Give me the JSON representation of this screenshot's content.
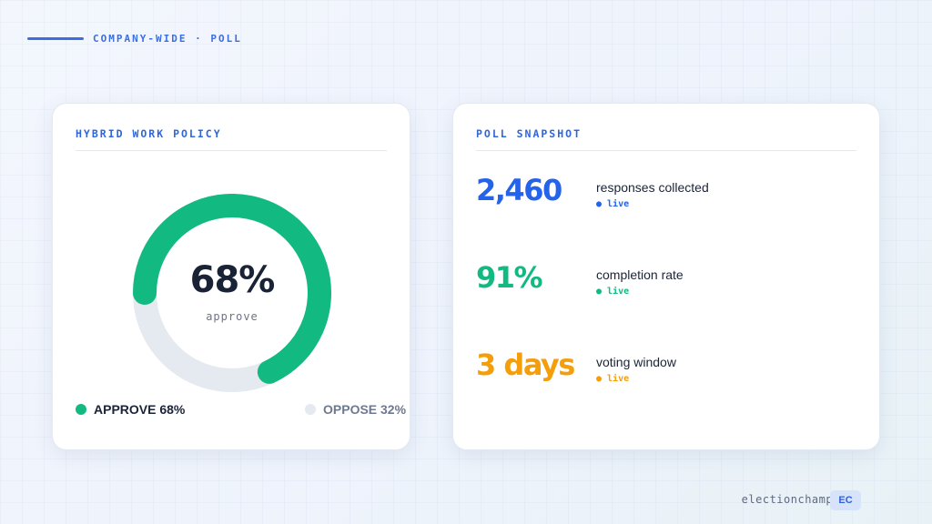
{
  "header": {
    "label": "COMPANY-WIDE · POLL"
  },
  "left_card": {
    "title": "HYBRID WORK POLICY",
    "donut": {
      "value_text": "68%",
      "caption": "approve",
      "approve_fraction": 0.68
    },
    "legend": [
      {
        "label": "APPROVE 68%",
        "color": "#12b981"
      },
      {
        "label": "OPPOSE 32%",
        "color": "#e5e9f0"
      }
    ]
  },
  "right_card": {
    "title": "POLL SNAPSHOT",
    "stats": [
      {
        "value": "2,460",
        "label": "responses collected",
        "status": "● live",
        "color": "#2563eb"
      },
      {
        "value": "91%",
        "label": "completion rate",
        "status": "● live",
        "color": "#12b981"
      },
      {
        "value": "3 days",
        "label": "voting window",
        "status": "● live",
        "color": "#f59e0b"
      }
    ]
  },
  "footer": {
    "site": "electionchamp.com",
    "badge": "EC"
  },
  "colors": {
    "accent": "#2f66db",
    "approve": "#12b981",
    "oppose": "#e5e9f0",
    "text": "#1a2235"
  }
}
